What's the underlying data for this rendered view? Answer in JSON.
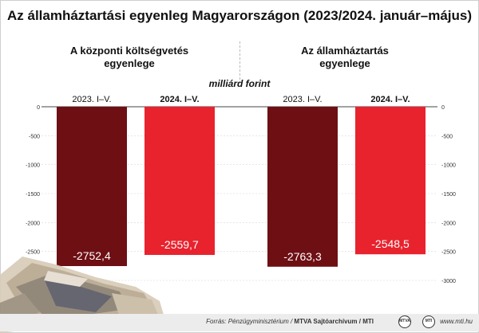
{
  "title": "Az államháztartási egyenleg Magyarországon (2023/2024. január–május)",
  "unit_label": "milliárd forint",
  "panels": [
    {
      "title_line1": "A központi költségvetés",
      "title_line2": "egyenlege"
    },
    {
      "title_line1": "Az államháztartás",
      "title_line2": "egyenlege"
    }
  ],
  "colors": {
    "dark": "#6e0f14",
    "bright": "#e8232e"
  },
  "chart_data": {
    "type": "bar",
    "ylim": [
      -3000,
      0
    ],
    "yticks_left": [
      "0",
      "-500",
      "-1000",
      "-1500",
      "-2000",
      "-2500"
    ],
    "yticks_right": [
      "0",
      "-500",
      "-1000",
      "-1500",
      "-2000",
      "-2500",
      "-3000"
    ],
    "panels": [
      {
        "categories": [
          "2023. I–V.",
          "2024. I–V."
        ],
        "values": [
          -2752.4,
          -2559.7
        ],
        "value_labels": [
          "-2752,4",
          "-2559,7"
        ]
      },
      {
        "categories": [
          "2023. I–V.",
          "2024. I–V."
        ],
        "values": [
          -2763.3,
          -2548.5
        ],
        "value_labels": [
          "-2763,3",
          "-2548,5"
        ]
      }
    ]
  },
  "footer": {
    "source_prefix": "Forrás: Pénzügyminisztérium / ",
    "source_bold": "MTVA Sajtóarchívum / MTI",
    "website": "www.mti.hu",
    "logo1": "MTVA",
    "logo2": "MTI"
  }
}
